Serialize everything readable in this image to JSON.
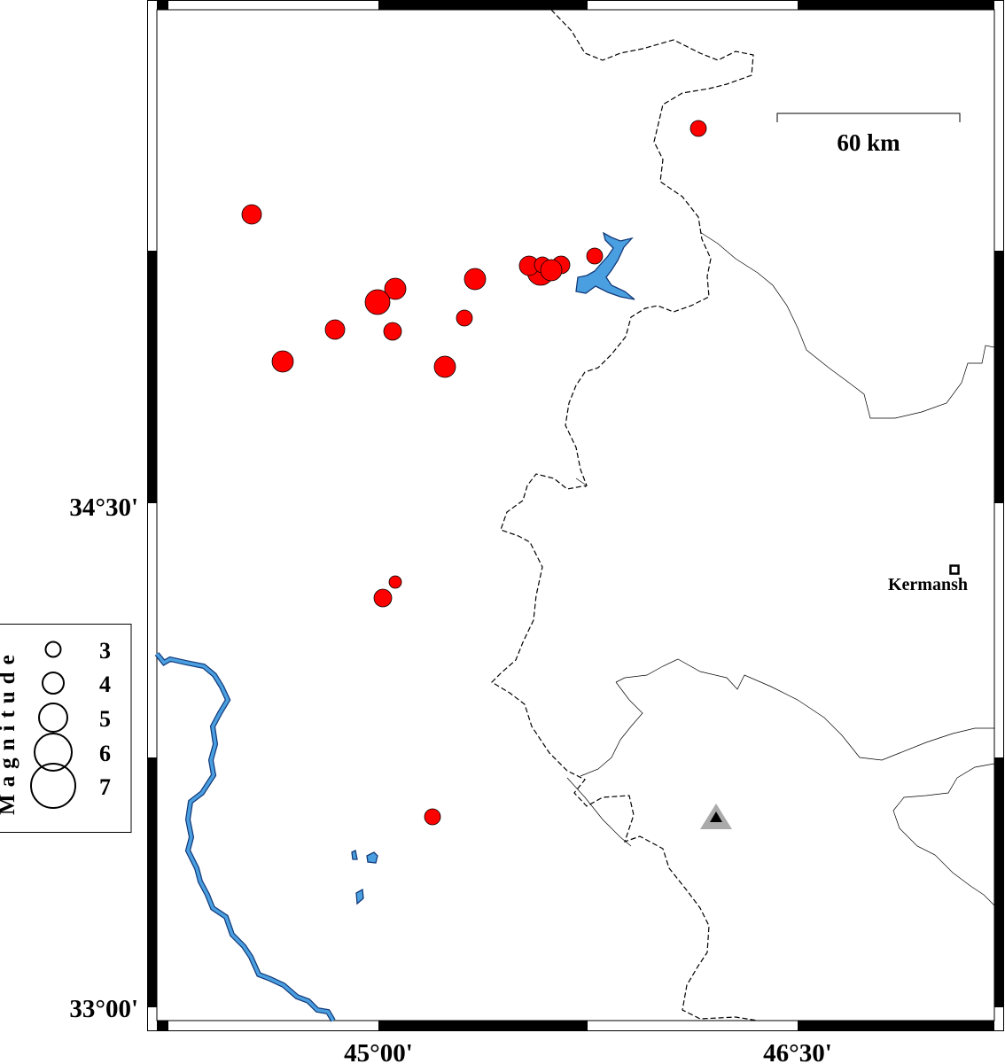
{
  "axes": {
    "lat_labels": [
      "34°30'",
      "33°00'"
    ],
    "lon_labels": [
      "45°00'",
      "46°30'"
    ]
  },
  "scale_bar": {
    "label": "60 km"
  },
  "city": {
    "name": "Kermansh"
  },
  "legend": {
    "title": "Magnitude",
    "magnitudes": [
      "3",
      "4",
      "5",
      "6",
      "7"
    ]
  },
  "colors": {
    "earthquake": "#ff0000",
    "water": "#4a9fe0",
    "station": "#aaaaaa"
  },
  "icons": {
    "station": "triangle-icon",
    "city": "square-icon"
  }
}
